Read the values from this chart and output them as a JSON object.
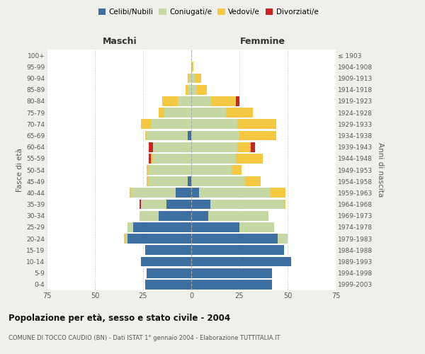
{
  "age_groups": [
    "0-4",
    "5-9",
    "10-14",
    "15-19",
    "20-24",
    "25-29",
    "30-34",
    "35-39",
    "40-44",
    "45-49",
    "50-54",
    "55-59",
    "60-64",
    "65-69",
    "70-74",
    "75-79",
    "80-84",
    "85-89",
    "90-94",
    "95-99",
    "100+"
  ],
  "birth_years": [
    "1999-2003",
    "1994-1998",
    "1989-1993",
    "1984-1988",
    "1979-1983",
    "1974-1978",
    "1969-1973",
    "1964-1968",
    "1959-1963",
    "1954-1958",
    "1949-1953",
    "1944-1948",
    "1939-1943",
    "1934-1938",
    "1929-1933",
    "1924-1928",
    "1919-1923",
    "1914-1918",
    "1909-1913",
    "1904-1908",
    "≤ 1903"
  ],
  "colors": {
    "celibi": "#3d6fa0",
    "coniugati": "#c5d8a4",
    "vedovi": "#f5c842",
    "divorziati": "#cc2222"
  },
  "males": {
    "celibi": [
      24,
      23,
      26,
      24,
      33,
      30,
      17,
      13,
      8,
      2,
      0,
      0,
      0,
      2,
      0,
      0,
      0,
      0,
      0,
      0,
      0
    ],
    "coniugati": [
      0,
      0,
      0,
      0,
      1,
      3,
      10,
      13,
      23,
      20,
      22,
      20,
      20,
      21,
      21,
      14,
      7,
      2,
      1,
      0,
      0
    ],
    "vedovi": [
      0,
      0,
      0,
      0,
      1,
      0,
      0,
      0,
      1,
      1,
      1,
      1,
      0,
      1,
      5,
      3,
      8,
      1,
      1,
      0,
      0
    ],
    "divorziati": [
      0,
      0,
      0,
      0,
      0,
      0,
      0,
      1,
      0,
      0,
      0,
      1,
      2,
      0,
      0,
      0,
      0,
      0,
      0,
      0,
      0
    ]
  },
  "females": {
    "celibi": [
      42,
      42,
      52,
      48,
      45,
      25,
      9,
      10,
      4,
      0,
      0,
      0,
      0,
      0,
      0,
      0,
      0,
      0,
      0,
      0,
      0
    ],
    "coniugati": [
      0,
      0,
      0,
      0,
      5,
      18,
      31,
      38,
      37,
      28,
      21,
      23,
      24,
      25,
      24,
      18,
      10,
      3,
      2,
      0,
      0
    ],
    "vedovi": [
      0,
      0,
      0,
      0,
      0,
      0,
      0,
      1,
      8,
      8,
      5,
      14,
      7,
      19,
      20,
      14,
      13,
      5,
      3,
      1,
      0
    ],
    "divorziati": [
      0,
      0,
      0,
      0,
      0,
      0,
      0,
      0,
      0,
      0,
      0,
      0,
      2,
      0,
      0,
      0,
      2,
      0,
      0,
      0,
      0
    ]
  },
  "title": "Popolazione per età, sesso e stato civile - 2004",
  "subtitle": "COMUNE DI TOCCO CAUDIO (BN) - Dati ISTAT 1° gennaio 2004 - Elaborazione TUTTITALIA.IT",
  "xlabel_left": "Maschi",
  "xlabel_right": "Femmine",
  "ylabel_left": "Fasce di età",
  "ylabel_right": "Anni di nascita",
  "xlim": 75,
  "legend_labels": [
    "Celibi/Nubili",
    "Coniugati/e",
    "Vedovi/e",
    "Divorziati/e"
  ],
  "bg_color": "#f0f0eb",
  "plot_bg": "#ffffff"
}
